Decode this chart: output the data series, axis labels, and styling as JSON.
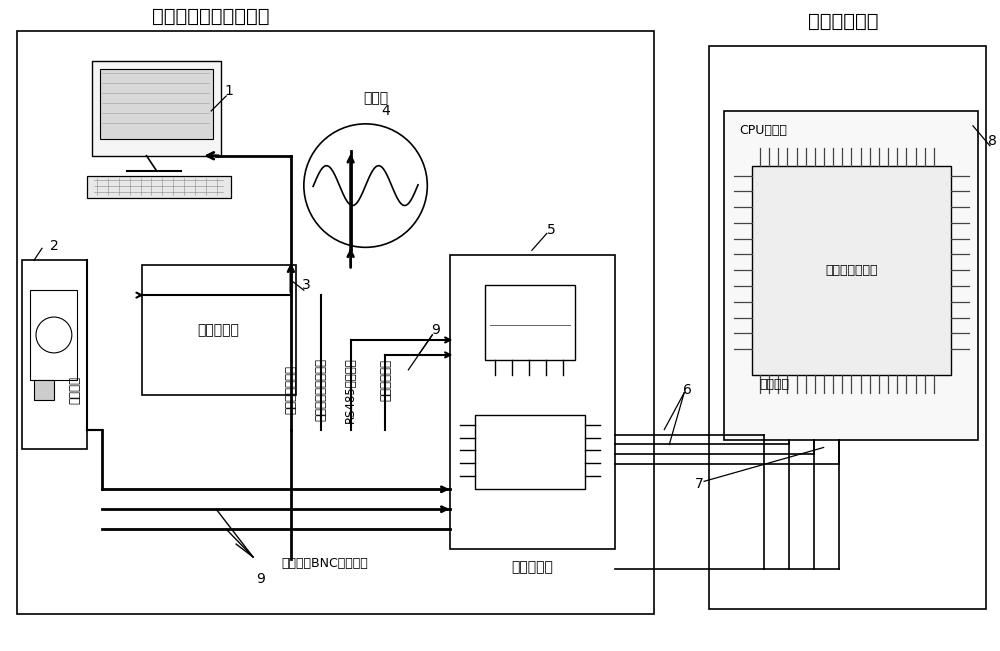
{
  "title_left": "中子反应堆外测试系统",
  "title_right": "中子反应堆内",
  "bg_color": "#ffffff",
  "status_box_label": "状态指示板",
  "monitor_box_label": "监测控制板",
  "cpu_box_label": "CPU电路板",
  "sparc_label": "被测空间处理器",
  "power_label": "板级供电",
  "reset_label": "处理器复位信号",
  "state_label": "被测处理器状态信号",
  "rs485_label": "RS485电平信号",
  "current_label": "电流监控信号",
  "bnc_label": "信号通过BNC线缆传送",
  "data_bus_label": "数据排线",
  "oscilloscope_label": "示波器",
  "font_color": "#000000",
  "line_color": "#000000"
}
